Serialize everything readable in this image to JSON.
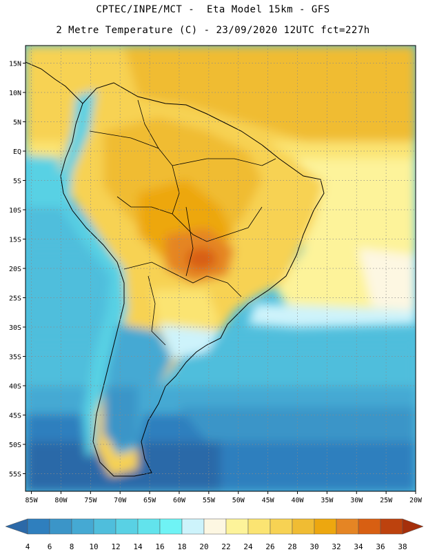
{
  "header": {
    "line1": "CPTEC/INPE/MCT -  Eta Model 15km - GFS",
    "line2": "2 Metre Temperature (C) - 23/09/2020 12UTC fct=227h"
  },
  "map": {
    "lat_range": [
      -58,
      18
    ],
    "lon_range": [
      -86,
      -20
    ],
    "lat_ticks": [
      "15N",
      "10N",
      "5N",
      "EQ",
      "5S",
      "10S",
      "15S",
      "20S",
      "25S",
      "30S",
      "35S",
      "40S",
      "45S",
      "50S",
      "55S"
    ],
    "lon_ticks": [
      "85W",
      "80W",
      "75W",
      "70W",
      "65W",
      "60W",
      "55W",
      "50W",
      "45W",
      "40W",
      "35W",
      "30W",
      "25W",
      "20W"
    ],
    "grid": "dotted",
    "land_outline_color": "#000000"
  },
  "colorbar": {
    "labels": [
      "4",
      "6",
      "8",
      "10",
      "12",
      "14",
      "16",
      "18",
      "20",
      "22",
      "24",
      "26",
      "28",
      "30",
      "32",
      "34",
      "36",
      "38"
    ],
    "colors": [
      "#2c69a8",
      "#2f7fbe",
      "#3b95c8",
      "#45a9d3",
      "#4fbedc",
      "#59d1e4",
      "#62e3ec",
      "#6ff3f5",
      "#cdf3fb",
      "#fdf7e2",
      "#fdf39a",
      "#fbe472",
      "#f7d253",
      "#f0bc33",
      "#eda70f",
      "#e58524",
      "#d85f12",
      "#bd420e",
      "#a52f0b"
    ]
  }
}
